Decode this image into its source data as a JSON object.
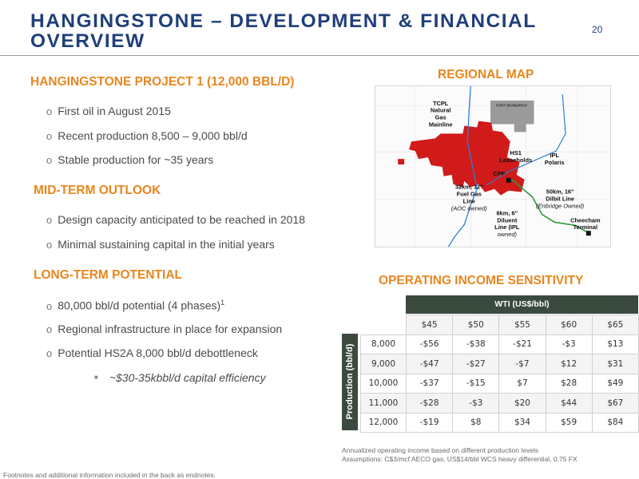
{
  "header": {
    "title": "HANGINGSTONE – DEVELOPMENT & FINANCIAL OVERVIEW",
    "page_number": "20"
  },
  "left": {
    "project_heading": "HANGINGSTONE PROJECT 1 (12,000 BBL/D)",
    "project_bullets": [
      "First oil in August 2015",
      "Recent production 8,500 – 9,000 bbl/d",
      "Stable production for ~35 years"
    ],
    "midterm_heading": "MID-TERM OUTLOOK",
    "midterm_bullets": [
      "Design capacity anticipated to be reached in 2018",
      "Minimal sustaining capital in the initial years"
    ],
    "longterm_heading": "LONG-TERM POTENTIAL",
    "longterm_bullets": [
      "80,000 bbl/d potential (4 phases)",
      "Regional infrastructure in place for expansion",
      "Potential HS2A 8,000 bbl/d debottleneck"
    ],
    "longterm_footnote_ref": "1",
    "sub_bullet": "~$30-35kbbl/d capital efficiency"
  },
  "map": {
    "heading": "REGIONAL MAP",
    "labels": {
      "tcpl_1": "TCPL",
      "tcpl_2": "Natural",
      "tcpl_3": "Gas",
      "tcpl_4": "Mainline",
      "fort_mcmurray": "FORT MCMURRAY",
      "hs1_1": "HS1",
      "hs1_2": "Leaseholds",
      "cpf": "CPF",
      "ipl_1": "IPL",
      "ipl_2": "Polaris",
      "fuel_1": "32km, 12\"",
      "fuel_2": "Fuel Gas",
      "fuel_3": "Line",
      "fuel_4": "(AOC owned)",
      "diluent_1": "8km, 6\"",
      "diluent_2": "Diluent",
      "diluent_3": "Line (IPL",
      "diluent_4": "owned)",
      "dilbit_1": "50km, 16\"",
      "dilbit_2": "Dilbit Line",
      "dilbit_3": "(Enbridge Owned)",
      "cheecham_1": "Cheecham",
      "cheecham_2": "Terminal"
    },
    "colors": {
      "leasehold": "#d11a1a",
      "city": "#9a9a9a",
      "gas_line": "#2a7fd4",
      "dilbit_line": "#2e9a3a"
    }
  },
  "sensitivity": {
    "heading": "OPERATING INCOME SENSITIVITY",
    "col_header": "WTI (US$/bbl)",
    "row_header": "Production (bbl/d)",
    "columns": [
      "$45",
      "$50",
      "$55",
      "$60",
      "$65"
    ],
    "rows": [
      {
        "production": "8,000",
        "values": [
          "-$56",
          "-$38",
          "-$21",
          "-$3",
          "$13"
        ]
      },
      {
        "production": "9,000",
        "values": [
          "-$47",
          "-$27",
          "-$7",
          "$12",
          "$31"
        ]
      },
      {
        "production": "10,000",
        "values": [
          "-$37",
          "-$15",
          "$7",
          "$28",
          "$49"
        ]
      },
      {
        "production": "11,000",
        "values": [
          "-$28",
          "-$3",
          "$20",
          "$44",
          "$67"
        ]
      },
      {
        "production": "12,000",
        "values": [
          "-$19",
          "$8",
          "$34",
          "$59",
          "$84"
        ]
      }
    ],
    "note_1": "Annualized operating income based on different production levels",
    "note_2": "Assumptions: C$3/mcf AECO gas, US$14/bbl WCS heavy differential, 0.75 FX"
  },
  "footer": {
    "note": "Footnotes and additional information included in the back as endnotes."
  }
}
